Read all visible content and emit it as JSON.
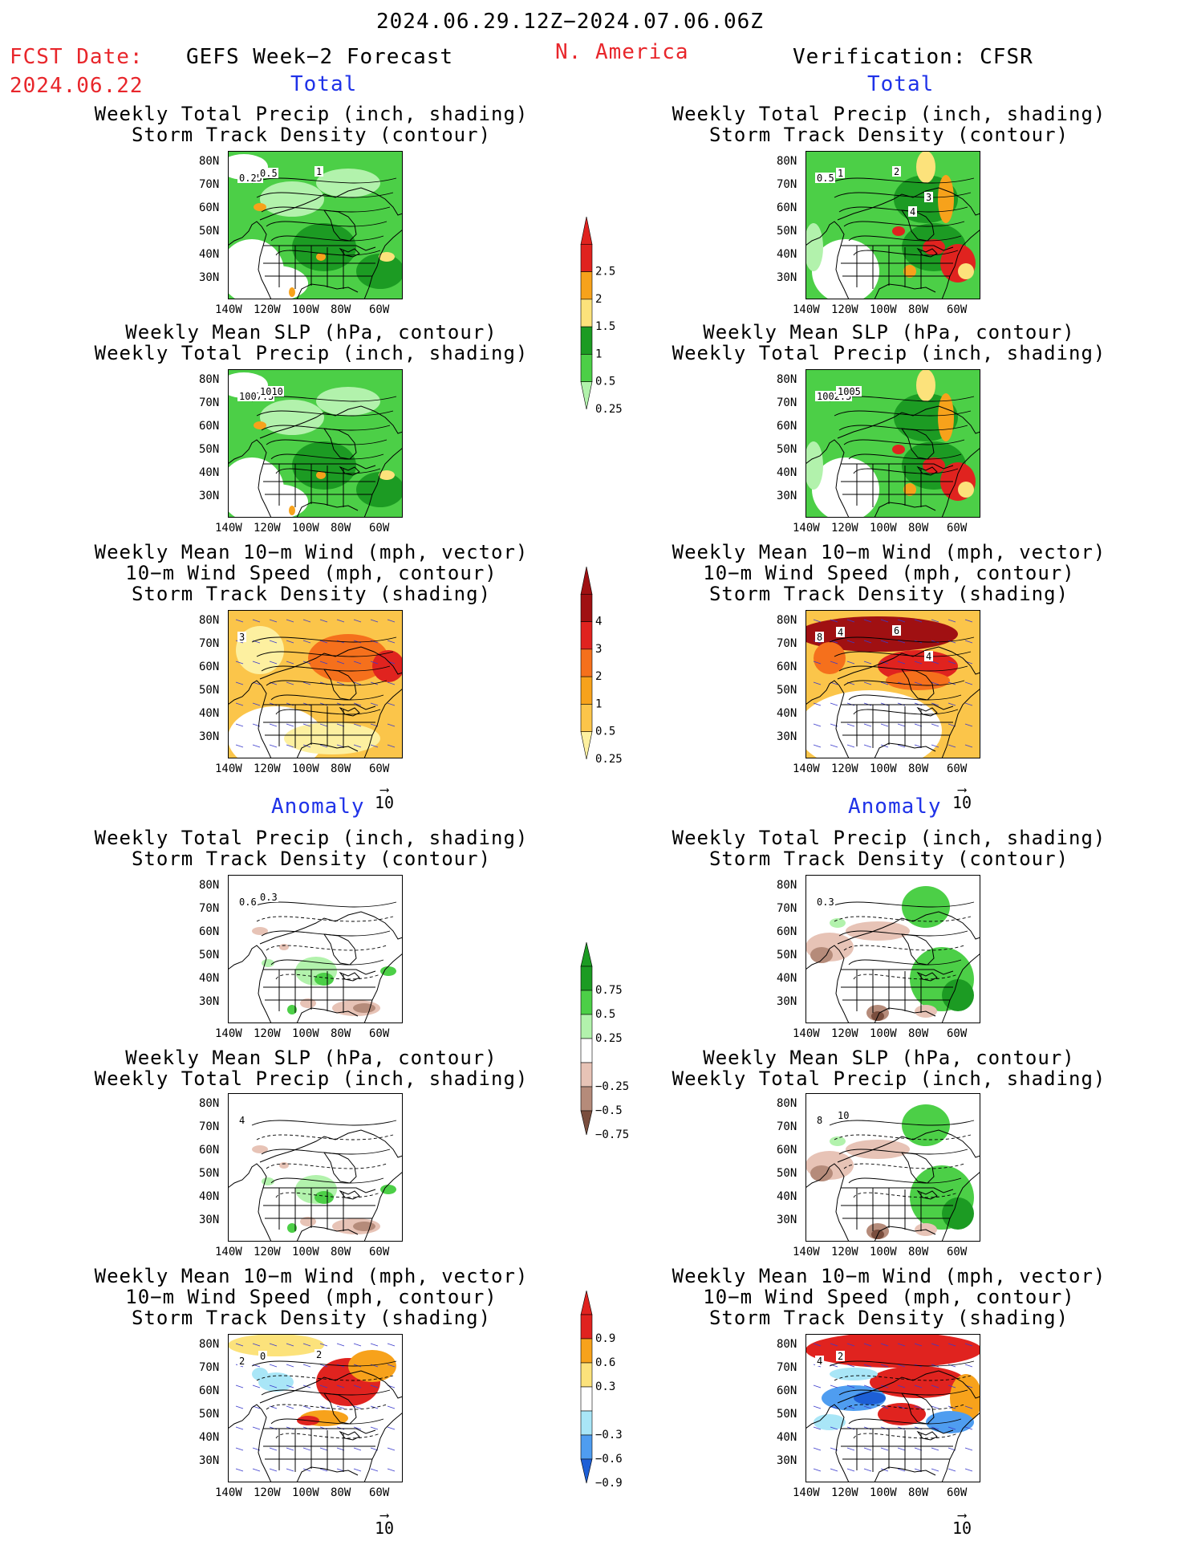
{
  "header": {
    "period": "2024.06.29.12Z−2024.07.06.06Z",
    "fcst_label": "FCST Date:",
    "fcst_date": "2024.06.22",
    "left_title": "GEFS Week−2 Forecast",
    "region": "N. America",
    "right_title": "Verification: CFSR"
  },
  "sections": {
    "total": "Total",
    "anomaly": "Anomaly"
  },
  "panel_titles": {
    "precip_storm": [
      "Weekly Total Precip (inch, shading)",
      "Storm Track Density (contour)"
    ],
    "slp_precip": [
      "Weekly Mean SLP (hPa, contour)",
      "Weekly Total Precip (inch, shading)"
    ],
    "wind_storm": [
      "Weekly Mean 10−m Wind (mph, vector)",
      "10−m Wind Speed (mph, contour)",
      "Storm Track Density (shading)"
    ]
  },
  "axes": {
    "lat_labels": [
      "80N",
      "70N",
      "60N",
      "50N",
      "40N",
      "30N"
    ],
    "lon_labels": [
      "140W",
      "120W",
      "100W",
      "80W",
      "60W"
    ]
  },
  "vector_ref": "10",
  "contour_labels": {
    "fc_total_precip": [
      "0.25",
      "0.5",
      "1"
    ],
    "fc_total_slp": [
      "1007.5",
      "1010"
    ],
    "fc_total_wind": [
      "3"
    ],
    "vf_total_precip": [
      "0.5",
      "1",
      "2",
      "3",
      "4"
    ],
    "vf_total_slp": [
      "1002.5",
      "1005"
    ],
    "vf_total_wind": [
      "8",
      "4",
      "6",
      "4"
    ],
    "fc_anom_precip": [
      "0.6",
      "0.3"
    ],
    "fc_anom_slp": [
      "4"
    ],
    "fc_anom_wind": [
      "2",
      "0",
      "2"
    ],
    "vf_anom_precip": [
      "0.3"
    ],
    "vf_anom_slp": [
      "8",
      "10"
    ],
    "vf_anom_wind": [
      "4",
      "2"
    ]
  },
  "colorbars": {
    "precip_total": {
      "labels": [
        "2.5",
        "2",
        "1.5",
        "1",
        "0.5",
        "0.25"
      ],
      "colors": [
        "#e0231f",
        "#f7a21b",
        "#fce27b",
        "#1c9b23",
        "#4ccf47",
        "#b2f2ac"
      ]
    },
    "storm_total": {
      "labels": [
        "4",
        "3",
        "2",
        "1",
        "0.5",
        "0.25"
      ],
      "colors": [
        "#a01012",
        "#e0231f",
        "#f5701c",
        "#f7a21b",
        "#fbc54a",
        "#fdf0a0"
      ]
    },
    "precip_anom": {
      "labels": [
        "0.75",
        "0.5",
        "0.25",
        "−0.25",
        "−0.5",
        "−0.75"
      ],
      "colors": [
        "#1c9b23",
        "#4ccf47",
        "#b2f2ac",
        "#ffffff",
        "#e7c3b6",
        "#b58b7a",
        "#7a4e3e"
      ]
    },
    "storm_anom": {
      "labels": [
        "0.9",
        "0.6",
        "0.3",
        "−0.3",
        "−0.6",
        "−0.9"
      ],
      "colors": [
        "#e0231f",
        "#f7a21b",
        "#fce27b",
        "#ffffff",
        "#a9e6f7",
        "#4f9df0",
        "#1d5fd6"
      ]
    }
  },
  "colors": {
    "red_text": "#e8262b",
    "blue_text": "#1f32e8"
  }
}
